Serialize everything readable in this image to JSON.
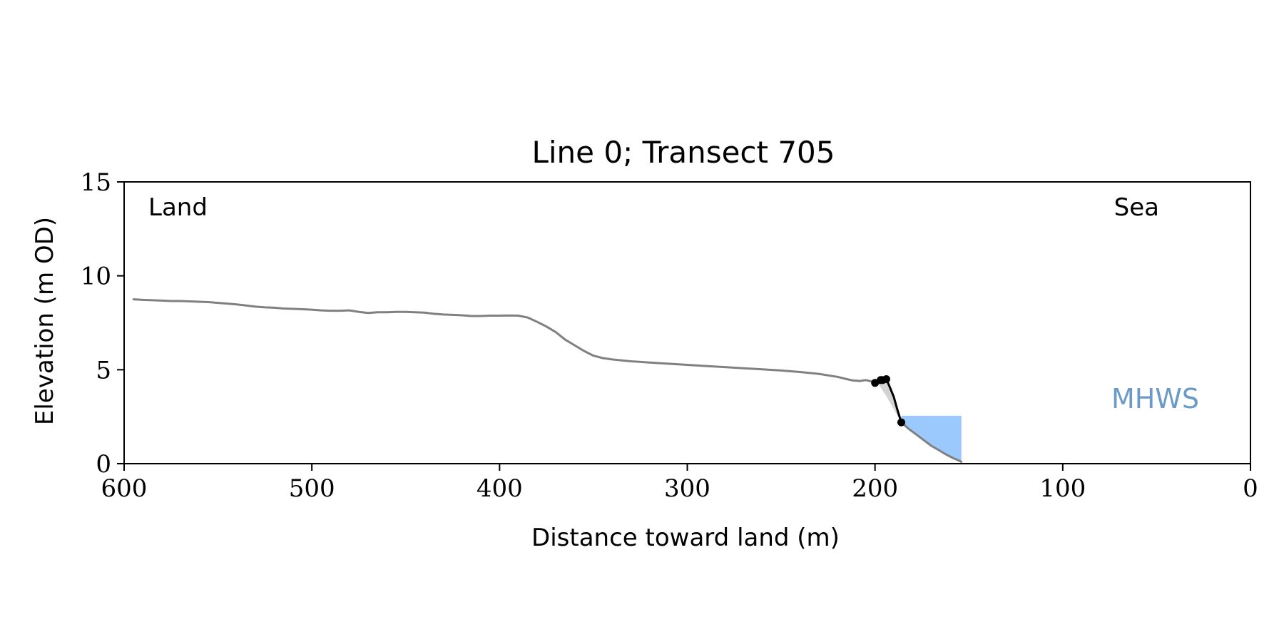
{
  "chart_data": {
    "type": "line",
    "title": "Line 0; Transect 705",
    "xlabel": "Distance toward land (m)",
    "ylabel": "Elevation (m OD)",
    "xlim": [
      600,
      0
    ],
    "ylim": [
      0,
      15
    ],
    "xticks": [
      600,
      500,
      400,
      300,
      200,
      100,
      0
    ],
    "yticks": [
      0,
      5,
      10,
      15
    ],
    "grid": false,
    "annotations": {
      "land": "Land",
      "sea": "Sea",
      "mhws": "MHWS"
    },
    "mhws_level": 2.55,
    "water_extent": [
      186,
      154
    ],
    "colors": {
      "profile": "#808080",
      "highlight": "#000000",
      "fill": "#d3d3d3",
      "water": "#9bc9fd",
      "mhws_text": "#6b9ac8"
    },
    "series": [
      {
        "x": [
          595,
          590,
          585,
          580,
          575,
          570,
          565,
          560,
          555,
          550,
          545,
          540,
          535,
          530,
          525,
          520,
          515,
          510,
          505,
          500,
          495,
          490,
          485,
          480,
          475,
          470,
          465,
          460,
          455,
          450,
          445,
          440,
          435,
          430,
          425,
          420,
          415,
          410,
          405,
          400,
          395,
          390,
          385,
          380,
          375,
          370,
          365,
          360,
          355,
          350,
          345,
          340,
          330,
          320,
          310,
          300,
          290,
          280,
          270,
          260,
          250,
          240,
          230,
          220,
          215,
          212,
          208,
          205,
          202,
          200
        ],
        "y": [
          8.75,
          8.72,
          8.7,
          8.68,
          8.66,
          8.66,
          8.64,
          8.62,
          8.6,
          8.56,
          8.52,
          8.48,
          8.42,
          8.36,
          8.32,
          8.3,
          8.26,
          8.24,
          8.22,
          8.2,
          8.16,
          8.14,
          8.14,
          8.16,
          8.08,
          8.02,
          8.06,
          8.06,
          8.08,
          8.08,
          8.06,
          8.04,
          7.98,
          7.94,
          7.92,
          7.9,
          7.86,
          7.86,
          7.88,
          7.88,
          7.89,
          7.88,
          7.78,
          7.55,
          7.3,
          7.0,
          6.6,
          6.3,
          6.0,
          5.75,
          5.62,
          5.55,
          5.45,
          5.38,
          5.32,
          5.26,
          5.2,
          5.14,
          5.08,
          5.02,
          4.96,
          4.88,
          4.78,
          4.62,
          4.5,
          4.43,
          4.4,
          4.45,
          4.38,
          4.3
        ]
      },
      {
        "x": [
          200,
          198,
          196,
          194,
          192,
          190,
          188,
          186
        ],
        "y": [
          4.3,
          4.45,
          4.45,
          4.5,
          4.05,
          3.55,
          2.85,
          2.2
        ]
      },
      {
        "x": [
          186,
          182,
          178,
          174,
          170,
          166,
          162,
          158,
          155,
          154
        ],
        "y": [
          2.2,
          1.85,
          1.55,
          1.25,
          0.95,
          0.72,
          0.48,
          0.28,
          0.15,
          0.1
        ]
      }
    ],
    "highlight_points": [
      {
        "x": 200,
        "y": 4.3
      },
      {
        "x": 197,
        "y": 4.45
      },
      {
        "x": 196,
        "y": 4.45
      },
      {
        "x": 194,
        "y": 4.5
      },
      {
        "x": 186,
        "y": 2.2
      }
    ],
    "shaded_segment": {
      "upper_x": [
        200,
        198,
        196,
        194,
        192,
        190,
        188,
        186
      ],
      "upper_y": [
        4.3,
        4.45,
        4.45,
        4.5,
        4.05,
        3.55,
        2.85,
        2.2
      ],
      "lower_x": [
        200,
        198,
        196,
        194,
        192,
        190,
        188,
        186
      ],
      "lower_y": [
        4.3,
        4.2,
        3.9,
        3.6,
        3.25,
        2.9,
        2.55,
        2.2
      ]
    }
  }
}
